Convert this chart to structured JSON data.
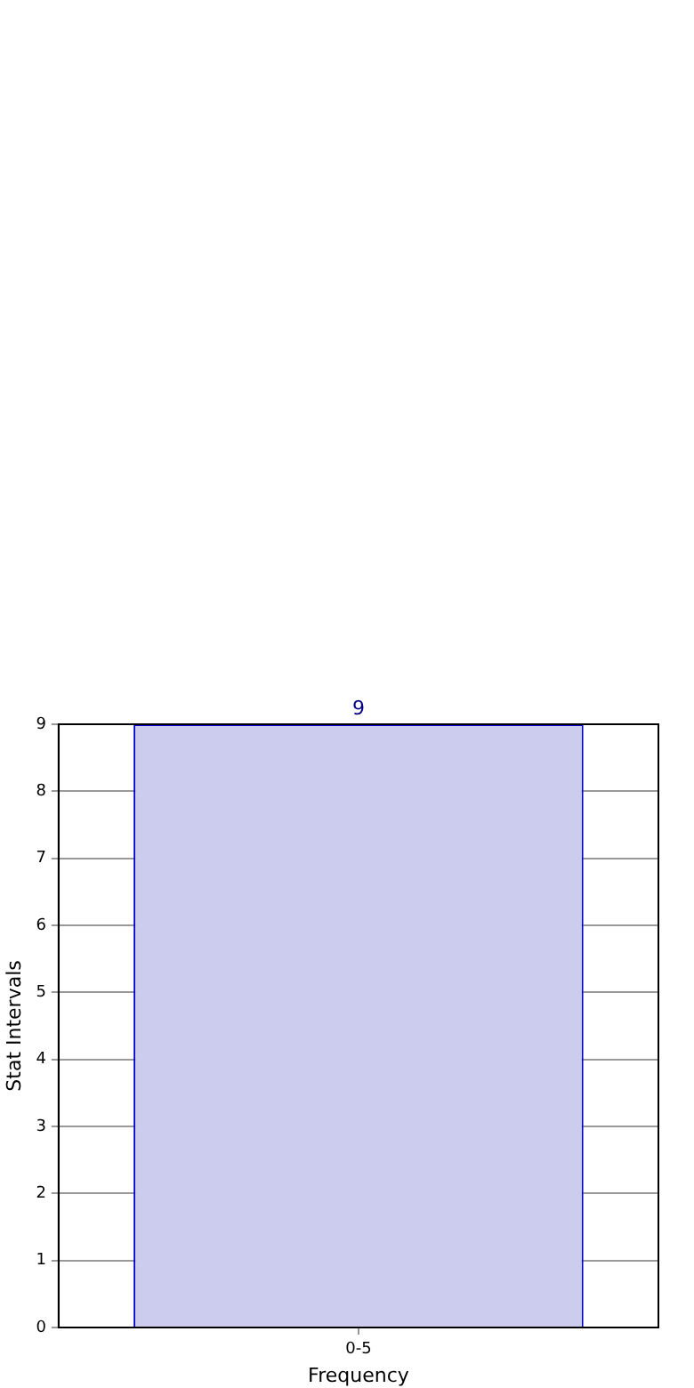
{
  "chart_data": {
    "type": "bar",
    "xlabel": "Frequency",
    "ylabel": "Stat Intervals",
    "categories": [
      "0-5"
    ],
    "values": [
      9
    ],
    "color": "#ccccee",
    "ylim": [
      0,
      9
    ],
    "yticks": [
      0,
      1,
      2,
      3,
      4,
      5,
      6,
      7,
      8,
      9
    ],
    "grid": true,
    "data_labels": true
  }
}
